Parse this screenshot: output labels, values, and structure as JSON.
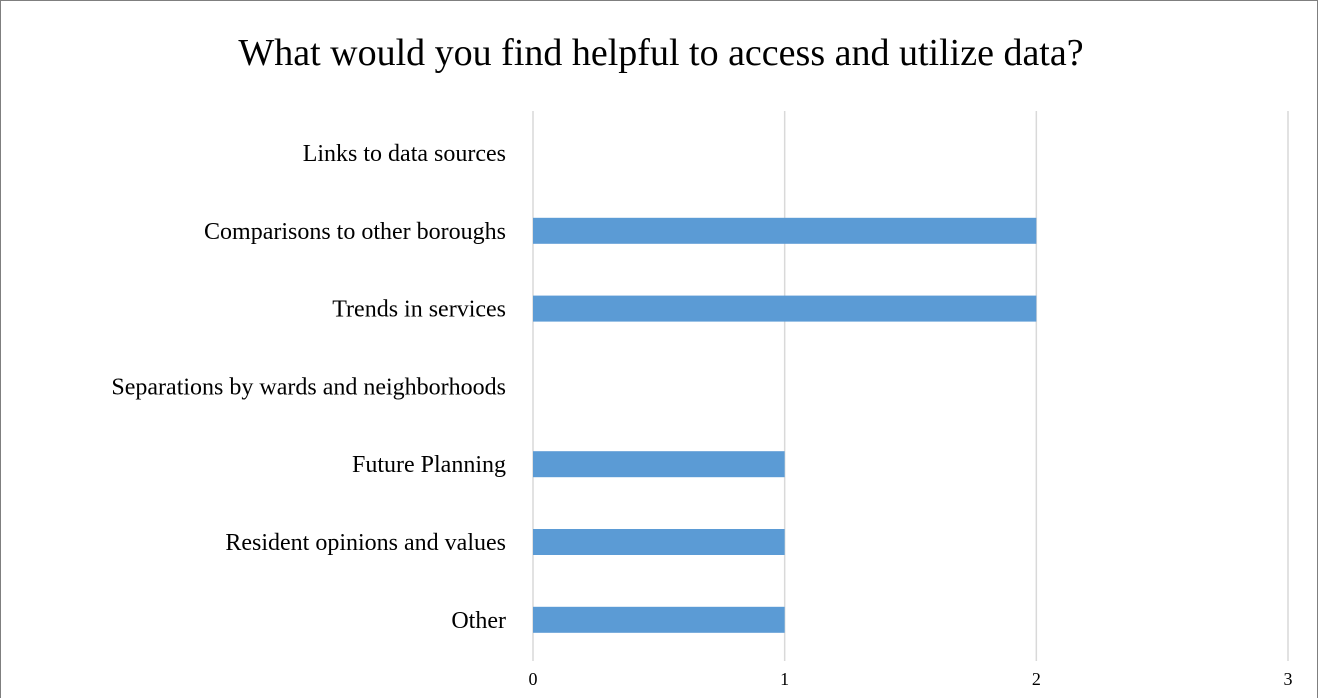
{
  "chart_data": {
    "type": "bar",
    "orientation": "horizontal",
    "title": "What would you find helpful to access and utilize data?",
    "categories": [
      "Links to data sources",
      "Comparisons to other boroughs",
      "Trends in services",
      "Separations by wards and neighborhoods",
      "Future Planning",
      "Resident opinions and values",
      "Other"
    ],
    "values": [
      0,
      2,
      2,
      0,
      1,
      1,
      1
    ],
    "xlim": [
      0,
      3
    ],
    "xticks": [
      0,
      1,
      2,
      3
    ],
    "xlabel": "",
    "ylabel": "",
    "grid": true,
    "legend": "none",
    "bar_color": "#5b9bd5",
    "grid_color": "#d9d9d9"
  }
}
